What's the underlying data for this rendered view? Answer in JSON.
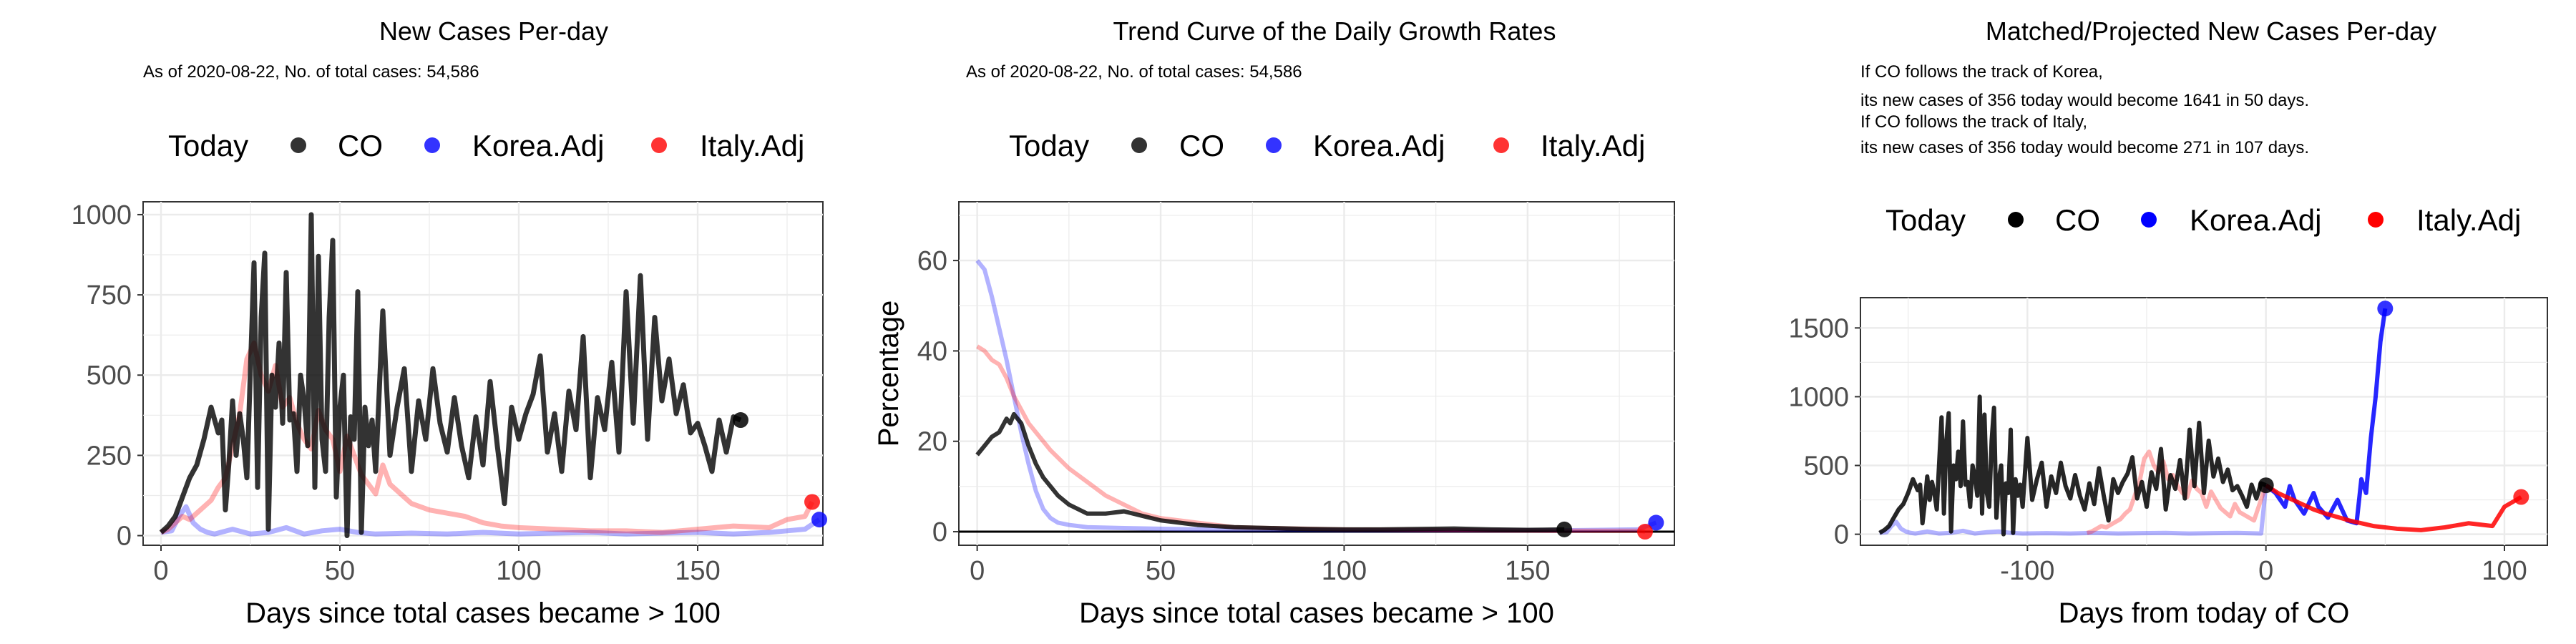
{
  "chart_data": [
    {
      "type": "line",
      "title": "New Cases Per-day",
      "subtitle": "As of 2020-08-22, No. of total cases: 54,586",
      "xlabel": "Days since total cases became > 100",
      "ylabel": "",
      "xlim": [
        -5,
        185
      ],
      "ylim": [
        -30,
        1040
      ],
      "xticks": [
        0,
        50,
        100,
        150
      ],
      "yticks": [
        0,
        250,
        500,
        750,
        1000
      ],
      "legend": {
        "title": "Today",
        "items": [
          "CO",
          "Korea.Adj",
          "Italy.Adj"
        ],
        "position": "top"
      },
      "grid": true,
      "series": [
        {
          "name": "CO",
          "color": "#000000",
          "x": [
            0,
            2,
            4,
            6,
            8,
            10,
            12,
            14,
            16,
            17,
            18,
            19,
            20,
            21,
            22,
            23,
            24,
            25,
            26,
            27,
            28,
            29,
            30,
            31,
            32,
            33,
            34,
            35,
            36,
            37,
            38,
            39,
            40,
            41,
            42,
            43,
            44,
            45,
            46,
            47,
            48,
            49,
            50,
            51,
            52,
            53,
            54,
            55,
            56,
            57,
            58,
            59,
            60,
            62,
            64,
            66,
            68,
            70,
            72,
            74,
            76,
            78,
            80,
            82,
            84,
            86,
            88,
            90,
            92,
            94,
            96,
            98,
            100,
            102,
            104,
            106,
            108,
            110,
            112,
            114,
            116,
            118,
            120,
            122,
            124,
            126,
            128,
            130,
            132,
            134,
            136,
            138,
            140,
            142,
            144,
            146,
            148,
            150,
            152,
            154,
            156,
            158,
            160,
            162
          ],
          "y": [
            10,
            30,
            60,
            120,
            180,
            220,
            300,
            400,
            320,
            360,
            80,
            230,
            420,
            250,
            380,
            300,
            180,
            520,
            850,
            150,
            680,
            880,
            20,
            500,
            400,
            600,
            350,
            820,
            360,
            380,
            200,
            500,
            420,
            280,
            1000,
            150,
            870,
            300,
            200,
            680,
            920,
            120,
            400,
            500,
            0,
            370,
            300,
            760,
            10,
            400,
            280,
            360,
            200,
            700,
            250,
            400,
            520,
            200,
            420,
            300,
            520,
            350,
            260,
            430,
            280,
            180,
            370,
            220,
            480,
            280,
            100,
            400,
            300,
            380,
            440,
            560,
            260,
            380,
            200,
            450,
            330,
            620,
            180,
            430,
            330,
            540,
            260,
            760,
            350,
            810,
            300,
            680,
            420,
            550,
            380,
            470,
            320,
            350,
            280,
            200,
            360,
            260,
            370,
            360
          ]
        },
        {
          "name": "Korea.Adj",
          "color": "#0000ff",
          "x": [
            0,
            3,
            5,
            7,
            9,
            11,
            13,
            15,
            20,
            25,
            30,
            35,
            40,
            45,
            50,
            55,
            60,
            70,
            80,
            90,
            100,
            110,
            120,
            130,
            140,
            150,
            160,
            170,
            180,
            184
          ],
          "y": [
            10,
            15,
            60,
            90,
            40,
            20,
            10,
            5,
            20,
            5,
            10,
            25,
            5,
            15,
            20,
            10,
            5,
            8,
            5,
            10,
            5,
            8,
            10,
            5,
            8,
            10,
            5,
            10,
            20,
            50
          ]
        },
        {
          "name": "Italy.Adj",
          "color": "#ff0000",
          "x": [
            0,
            2,
            4,
            6,
            8,
            10,
            12,
            14,
            16,
            18,
            20,
            22,
            24,
            26,
            28,
            30,
            32,
            34,
            36,
            38,
            40,
            42,
            44,
            46,
            48,
            50,
            52,
            54,
            56,
            58,
            60,
            62,
            64,
            66,
            68,
            70,
            75,
            80,
            85,
            90,
            95,
            100,
            110,
            120,
            130,
            140,
            150,
            160,
            170,
            175,
            180,
            182
          ],
          "y": [
            10,
            20,
            40,
            60,
            50,
            70,
            90,
            110,
            150,
            180,
            280,
            380,
            550,
            600,
            500,
            450,
            530,
            400,
            430,
            350,
            300,
            270,
            390,
            330,
            300,
            200,
            310,
            250,
            190,
            160,
            130,
            220,
            160,
            140,
            120,
            100,
            80,
            70,
            60,
            40,
            30,
            25,
            20,
            15,
            15,
            10,
            20,
            30,
            25,
            50,
            60,
            105
          ]
        }
      ]
    },
    {
      "type": "line",
      "title": "Trend Curve of the Daily Growth Rates",
      "subtitle": "As of 2020-08-22, No. of total cases: 54,586",
      "xlabel": "Days since total cases became > 100",
      "ylabel": "Percentage",
      "xlim": [
        -5,
        190
      ],
      "ylim": [
        -3,
        73
      ],
      "xticks": [
        0,
        50,
        100,
        150
      ],
      "yticks": [
        0,
        20,
        40,
        60
      ],
      "legend": {
        "title": "Today",
        "items": [
          "CO",
          "Korea.Adj",
          "Italy.Adj"
        ],
        "position": "top"
      },
      "grid": true,
      "series": [
        {
          "name": "CO",
          "color": "#000000",
          "x": [
            0,
            2,
            4,
            6,
            8,
            9,
            10,
            12,
            14,
            16,
            18,
            20,
            22,
            25,
            30,
            35,
            40,
            45,
            50,
            60,
            70,
            80,
            90,
            100,
            110,
            120,
            130,
            140,
            150,
            160
          ],
          "y": [
            17,
            19,
            21,
            22,
            25,
            24,
            26,
            24,
            19,
            15,
            12,
            10,
            8,
            6,
            4,
            4,
            4.5,
            3.5,
            2.5,
            1.5,
            1,
            0.8,
            0.6,
            0.5,
            0.5,
            0.6,
            0.7,
            0.5,
            0.4,
            0.5
          ]
        },
        {
          "name": "Korea.Adj",
          "color": "#0000ff",
          "x": [
            0,
            2,
            4,
            6,
            8,
            10,
            12,
            14,
            16,
            18,
            20,
            22,
            25,
            30,
            40,
            60,
            80,
            100,
            120,
            140,
            160,
            180,
            185
          ],
          "y": [
            60,
            58,
            52,
            45,
            38,
            30,
            22,
            15,
            9,
            5,
            3,
            2,
            1.5,
            1,
            0.8,
            0.5,
            0.4,
            0.3,
            0.3,
            0.3,
            0.3,
            0.5,
            2
          ]
        },
        {
          "name": "Italy.Adj",
          "color": "#ff0000",
          "x": [
            0,
            2,
            4,
            6,
            8,
            10,
            12,
            14,
            16,
            18,
            20,
            25,
            30,
            35,
            40,
            45,
            50,
            60,
            70,
            80,
            100,
            120,
            140,
            160,
            180,
            182
          ],
          "y": [
            41,
            40,
            38,
            37,
            34,
            30,
            27,
            24,
            22,
            20,
            18,
            14,
            11,
            8,
            6,
            4,
            3,
            2,
            1,
            0.8,
            0.5,
            0.4,
            0.3,
            0.2,
            0.2,
            0
          ]
        }
      ]
    },
    {
      "type": "line",
      "title": "Matched/Projected New Cases Per-day",
      "subtitle": "",
      "annotations": [
        "If CO follows the track of Korea,",
        "its new cases of 356 today would become 1641 in 50 days.",
        "If CO follows the track of Italy,",
        "its new cases of 356 today would become 271 in 107 days."
      ],
      "xlabel": "Days from today of CO",
      "ylabel": "",
      "xlim": [
        -170,
        118
      ],
      "ylim": [
        -80,
        1720
      ],
      "xticks": [
        -100,
        0,
        100
      ],
      "yticks": [
        0,
        500,
        1000,
        1500
      ],
      "legend": {
        "title": "Today",
        "items": [
          "CO",
          "Korea.Adj",
          "Italy.Adj"
        ],
        "position": "top"
      },
      "grid": true,
      "series": [
        {
          "name": "CO",
          "color": "#000000",
          "x": [
            -162,
            -160,
            -158,
            -156,
            -154,
            -152,
            -150,
            -148,
            -146,
            -145,
            -144,
            -143,
            -142,
            -141,
            -140,
            -139,
            -138,
            -137,
            -136,
            -135,
            -134,
            -133,
            -132,
            -131,
            -130,
            -129,
            -128,
            -127,
            -126,
            -125,
            -124,
            -123,
            -122,
            -121,
            -120,
            -119,
            -118,
            -117,
            -116,
            -115,
            -114,
            -113,
            -112,
            -111,
            -110,
            -109,
            -108,
            -107,
            -106,
            -105,
            -104,
            -103,
            -102,
            -100,
            -98,
            -96,
            -94,
            -92,
            -90,
            -88,
            -86,
            -84,
            -82,
            -80,
            -78,
            -76,
            -74,
            -72,
            -70,
            -68,
            -66,
            -64,
            -62,
            -60,
            -58,
            -56,
            -54,
            -52,
            -50,
            -48,
            -46,
            -44,
            -42,
            -40,
            -38,
            -36,
            -34,
            -32,
            -30,
            -28,
            -26,
            -24,
            -22,
            -20,
            -18,
            -16,
            -14,
            -12,
            -10,
            -8,
            -6,
            -4,
            -2,
            0
          ],
          "y": [
            10,
            30,
            60,
            120,
            180,
            220,
            300,
            400,
            320,
            360,
            80,
            230,
            420,
            250,
            380,
            300,
            180,
            520,
            850,
            150,
            680,
            880,
            20,
            500,
            400,
            600,
            350,
            820,
            360,
            380,
            200,
            500,
            420,
            280,
            1000,
            150,
            870,
            300,
            200,
            680,
            920,
            120,
            400,
            500,
            0,
            370,
            300,
            760,
            10,
            400,
            280,
            360,
            200,
            700,
            250,
            400,
            520,
            200,
            420,
            300,
            520,
            350,
            260,
            430,
            280,
            180,
            370,
            220,
            480,
            280,
            100,
            400,
            300,
            380,
            440,
            560,
            260,
            380,
            200,
            450,
            330,
            620,
            180,
            430,
            330,
            540,
            260,
            760,
            350,
            810,
            300,
            680,
            420,
            550,
            380,
            470,
            320,
            350,
            280,
            200,
            360,
            260,
            370,
            356
          ]
        },
        {
          "name": "Korea.Adj",
          "color": "#0000ff",
          "x": [
            -162,
            -159,
            -157,
            -155,
            -153,
            -151,
            -149,
            -147,
            -142,
            -137,
            -132,
            -127,
            -122,
            -117,
            -112,
            -107,
            -102,
            -92,
            -82,
            -72,
            -62,
            -52,
            -42,
            -32,
            -22,
            -12,
            -2,
            0,
            4,
            8,
            10,
            12,
            16,
            20,
            22,
            26,
            30,
            34,
            38,
            40,
            42,
            44,
            46,
            48,
            50
          ],
          "y": [
            10,
            15,
            60,
            90,
            40,
            20,
            10,
            5,
            20,
            5,
            10,
            25,
            5,
            15,
            20,
            10,
            5,
            8,
            5,
            10,
            5,
            8,
            10,
            5,
            8,
            10,
            5,
            356,
            300,
            200,
            350,
            250,
            150,
            300,
            200,
            120,
            250,
            100,
            80,
            400,
            300,
            700,
            1000,
            1400,
            1641
          ]
        },
        {
          "name": "Italy.Adj",
          "color": "#ff0000",
          "x": [
            -75,
            -73,
            -71,
            -69,
            -67,
            -65,
            -63,
            -61,
            -59,
            -57,
            -55,
            -53,
            -51,
            -49,
            -47,
            -45,
            -43,
            -41,
            -39,
            -37,
            -35,
            -33,
            -31,
            -29,
            -27,
            -25,
            -23,
            -21,
            -19,
            -17,
            -15,
            -13,
            -11,
            -9,
            -7,
            -5,
            0,
            5,
            10,
            15,
            20,
            25,
            35,
            45,
            55,
            65,
            75,
            85,
            95,
            100,
            105,
            107
          ],
          "y": [
            10,
            20,
            40,
            60,
            50,
            70,
            90,
            110,
            150,
            180,
            280,
            380,
            550,
            600,
            500,
            450,
            530,
            400,
            430,
            350,
            300,
            270,
            390,
            330,
            300,
            200,
            310,
            250,
            190,
            160,
            130,
            220,
            160,
            140,
            120,
            100,
            356,
            300,
            260,
            220,
            180,
            150,
            100,
            60,
            40,
            30,
            50,
            80,
            60,
            200,
            250,
            271
          ]
        }
      ]
    }
  ]
}
